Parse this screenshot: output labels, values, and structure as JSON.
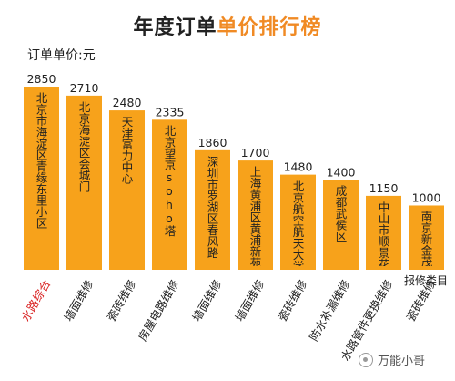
{
  "chart_data": {
    "type": "bar",
    "title_part1": "年度订单",
    "title_part2": "单价排行榜",
    "ylabel": "订单单价:元",
    "xlabel": "报修类目",
    "ylim": [
      0,
      2850
    ],
    "categories": [
      "水路综合",
      "墙面维修",
      "瓷砖维修",
      "房屋电路维修",
      "墙面维修",
      "墙面维修",
      "瓷砖维修",
      "防水补漏维修",
      "水路管件更换维修",
      "瓷砖维修"
    ],
    "values": [
      2850,
      2710,
      2480,
      2335,
      1860,
      1700,
      1480,
      1400,
      1150,
      1000
    ],
    "bar_texts": [
      "北京市海淀区青缘东里小区",
      "北京海淀区会城门",
      "天津富力中心",
      "北京望京soho塔",
      "深圳市罗湖区春风路",
      "上海黄浦区黄浦新苑",
      "北京航空航天大学",
      "成都武侯区",
      "中山市顺景花园",
      "南京新金茂"
    ],
    "highlight_index": 0,
    "colors": {
      "bar": "#f7a21b",
      "title_accent": "#f08a24",
      "highlight_label": "#d81e1e"
    }
  },
  "watermark": {
    "icon": "wechat-icon",
    "text": "万能小哥"
  }
}
